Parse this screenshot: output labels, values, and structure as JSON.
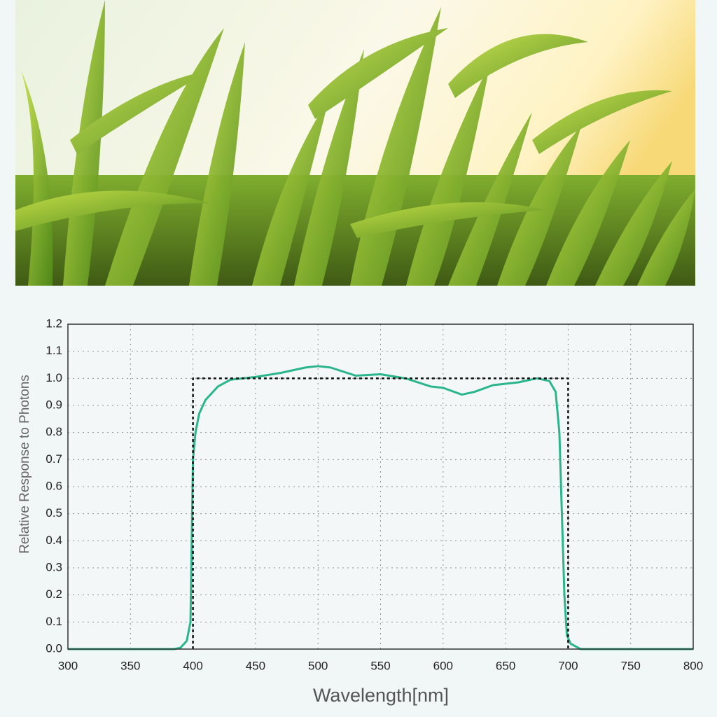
{
  "chart_data": {
    "type": "line",
    "xlabel": "Wavelength[nm]",
    "ylabel": "Relative Response to Photons",
    "xlim": [
      300,
      800
    ],
    "ylim": [
      0,
      1.2
    ],
    "xticks": [
      300,
      350,
      400,
      450,
      500,
      550,
      600,
      650,
      700,
      750,
      800
    ],
    "yticks": [
      {
        "value": 0,
        "label": "0.0"
      },
      0.1,
      0.2,
      0.3,
      0.4,
      0.5,
      0.6,
      0.7,
      0.8,
      0.9,
      {
        "value": 1,
        "label": "1.0"
      },
      1.1,
      1.2
    ],
    "grid": true,
    "series": [
      {
        "color": "#2bb58c",
        "style": "solid",
        "x": [
          300,
          385,
          390,
          395,
          398,
          400,
          402,
          405,
          410,
          420,
          430,
          450,
          470,
          490,
          500,
          510,
          530,
          550,
          570,
          590,
          600,
          615,
          625,
          640,
          660,
          675,
          685,
          690,
          693,
          695,
          697,
          699,
          702,
          710,
          800
        ],
        "values": [
          0,
          0,
          0.005,
          0.03,
          0.1,
          0.7,
          0.8,
          0.87,
          0.92,
          0.97,
          0.995,
          1.005,
          1.02,
          1.04,
          1.045,
          1.04,
          1.01,
          1.015,
          1.0,
          0.97,
          0.965,
          0.94,
          0.95,
          0.975,
          0.985,
          1.0,
          0.99,
          0.95,
          0.8,
          0.5,
          0.2,
          0.05,
          0.02,
          0,
          0
        ]
      },
      {
        "color": "#111111",
        "style": "dotted",
        "x": [
          400,
          400,
          700,
          700
        ],
        "values": [
          0,
          1,
          1,
          0
        ]
      }
    ]
  }
}
